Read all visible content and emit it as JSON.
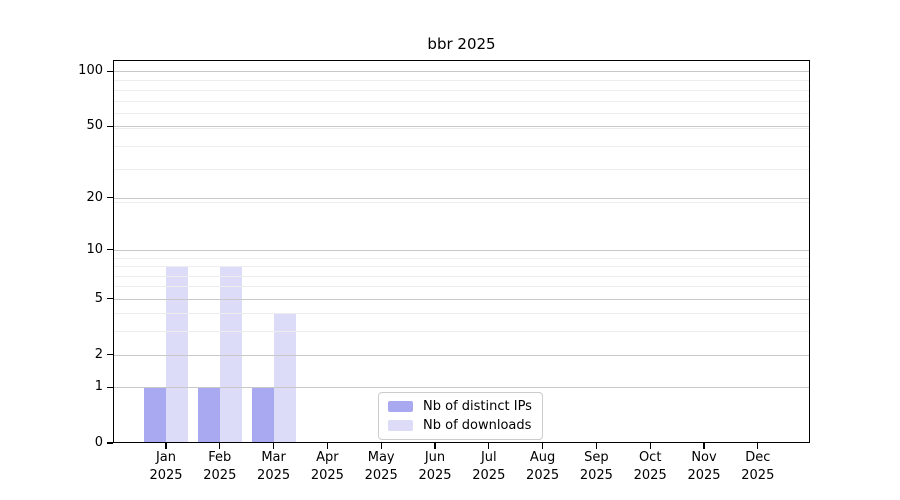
{
  "chart_data": {
    "type": "bar",
    "title": "bbr 2025",
    "categories": [
      "Jan",
      "Feb",
      "Mar",
      "Apr",
      "May",
      "Jun",
      "Jul",
      "Aug",
      "Sep",
      "Oct",
      "Nov",
      "Dec"
    ],
    "x_year": "2025",
    "series": [
      {
        "name": "Nb of distinct IPs",
        "color": "#a9a9f1",
        "values": [
          1,
          1,
          1,
          0,
          0,
          0,
          0,
          0,
          0,
          0,
          0,
          0
        ]
      },
      {
        "name": "Nb of downloads",
        "color": "#dcdcf8",
        "values": [
          8,
          8,
          4,
          0,
          0,
          0,
          0,
          0,
          0,
          0,
          0,
          0
        ]
      }
    ],
    "xlabel": "",
    "ylabel": "",
    "yscale": "log1p",
    "ylim": [
      0,
      115
    ],
    "y_ticks": [
      0,
      1,
      2,
      5,
      10,
      20,
      50,
      100
    ],
    "y_minor_gridlines": [
      3,
      4,
      6,
      7,
      8,
      9,
      19,
      29,
      39,
      49,
      59,
      69,
      79,
      89
    ],
    "grid": "horizontal",
    "grid_above_bars": true,
    "legend_position": "lower-center",
    "colors": {
      "axis": "#000000",
      "major_grid": "#c8c8c8",
      "minor_grid": "#ededed",
      "background": "#ffffff",
      "legend_border": "#cccccc"
    }
  }
}
